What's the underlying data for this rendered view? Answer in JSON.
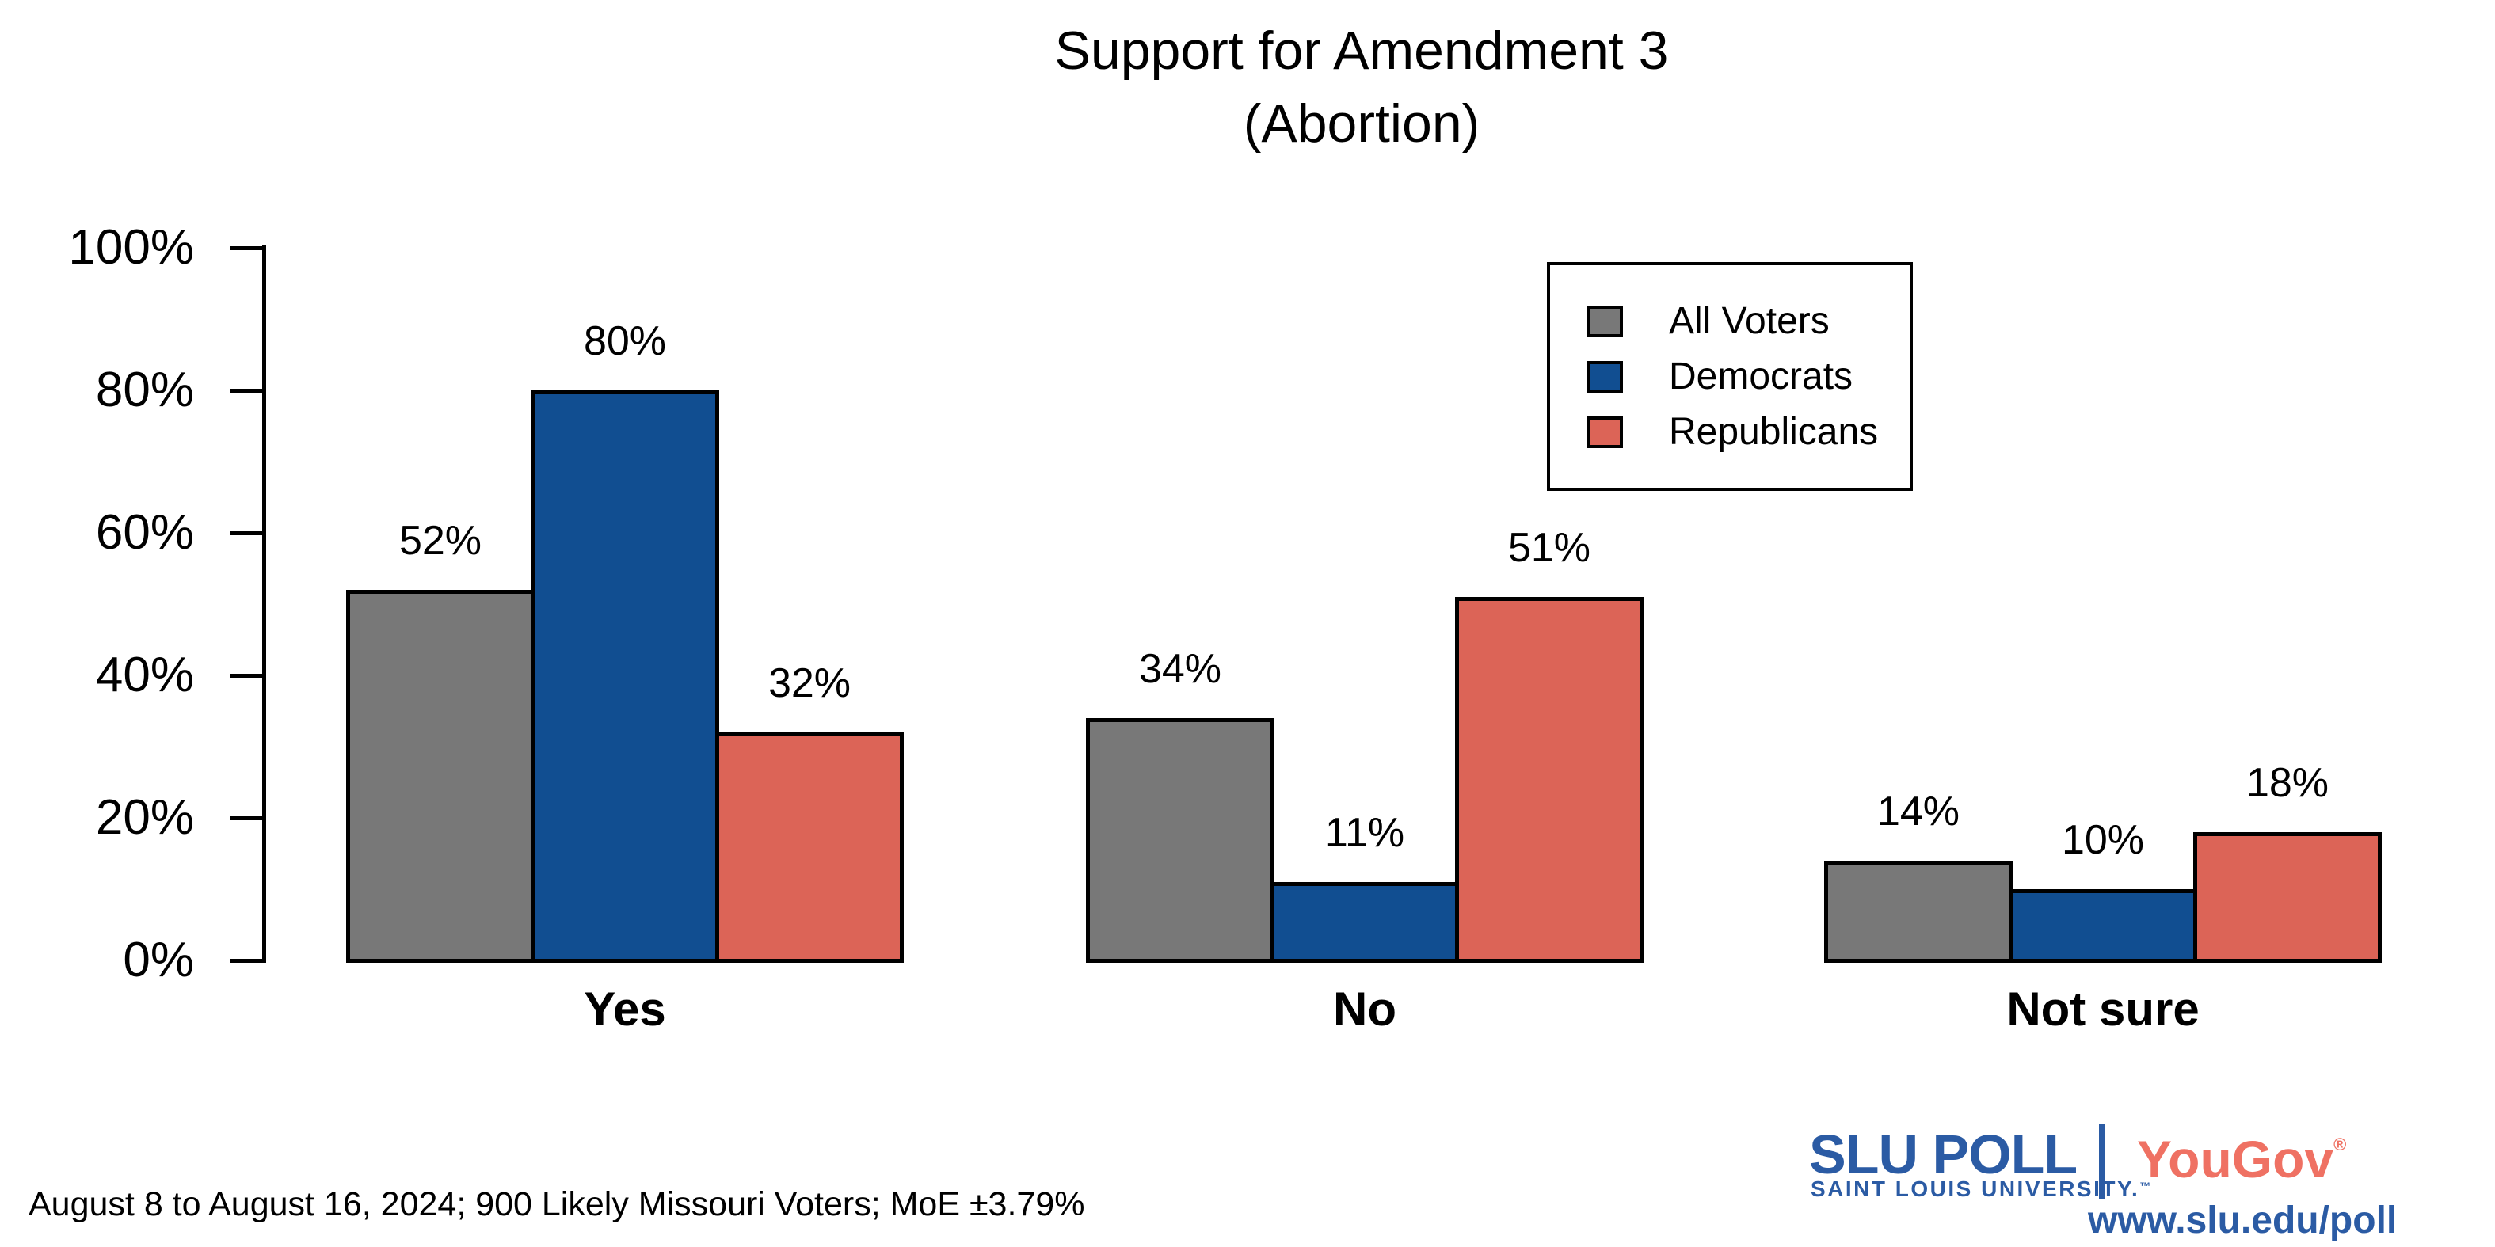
{
  "chart_data": {
    "type": "bar",
    "title": "Support for Amendment 3",
    "subtitle": "(Abortion)",
    "categories": [
      "Yes",
      "No",
      "Not sure"
    ],
    "series": [
      {
        "name": "All Voters",
        "color": "#787878",
        "values": [
          52,
          34,
          14
        ]
      },
      {
        "name": "Democrats",
        "color": "#114E91",
        "values": [
          80,
          11,
          10
        ]
      },
      {
        "name": "Republicans",
        "color": "#DC6457",
        "values": [
          32,
          51,
          18
        ]
      }
    ],
    "groups": [
      {
        "category": "Yes",
        "bars": [
          {
            "series": "All Voters",
            "value": 52,
            "label": "52%"
          },
          {
            "series": "Democrats",
            "value": 80,
            "label": "80%"
          },
          {
            "series": "Republicans",
            "value": 32,
            "label": "32%"
          }
        ]
      },
      {
        "category": "No",
        "bars": [
          {
            "series": "All Voters",
            "value": 34,
            "label": "34%"
          },
          {
            "series": "Democrats",
            "value": 11,
            "label": "11%"
          },
          {
            "series": "Republicans",
            "value": 51,
            "label": "51%"
          }
        ]
      },
      {
        "category": "Not sure",
        "bars": [
          {
            "series": "All Voters",
            "value": 14,
            "label": "14%"
          },
          {
            "series": "Democrats",
            "value": 10,
            "label": "10%"
          },
          {
            "series": "Republicans",
            "value": 18,
            "label": "18%"
          }
        ]
      }
    ],
    "y_axis": {
      "min": 0,
      "max": 100,
      "tick_labels": [
        "0%",
        "20%",
        "40%",
        "60%",
        "80%",
        "100%"
      ]
    },
    "grid": false,
    "legend_position": "top-right",
    "bar_outline_color": "#000000"
  },
  "footer": {
    "note": "August 8 to August 16, 2024; 900 Likely Missouri Voters; MoE ±3.79%"
  },
  "branding": {
    "slu_wordmark": "SLU POLL",
    "slu_subtitle": "SAINT LOUIS UNIVERSITY.",
    "slu_trademark": "™",
    "yougov_wordmark": "YouGov",
    "yougov_registered": "®",
    "url": "www.slu.edu/poll",
    "slu_blue": "#2B5BA4",
    "yougov_coral": "#EF7163"
  }
}
